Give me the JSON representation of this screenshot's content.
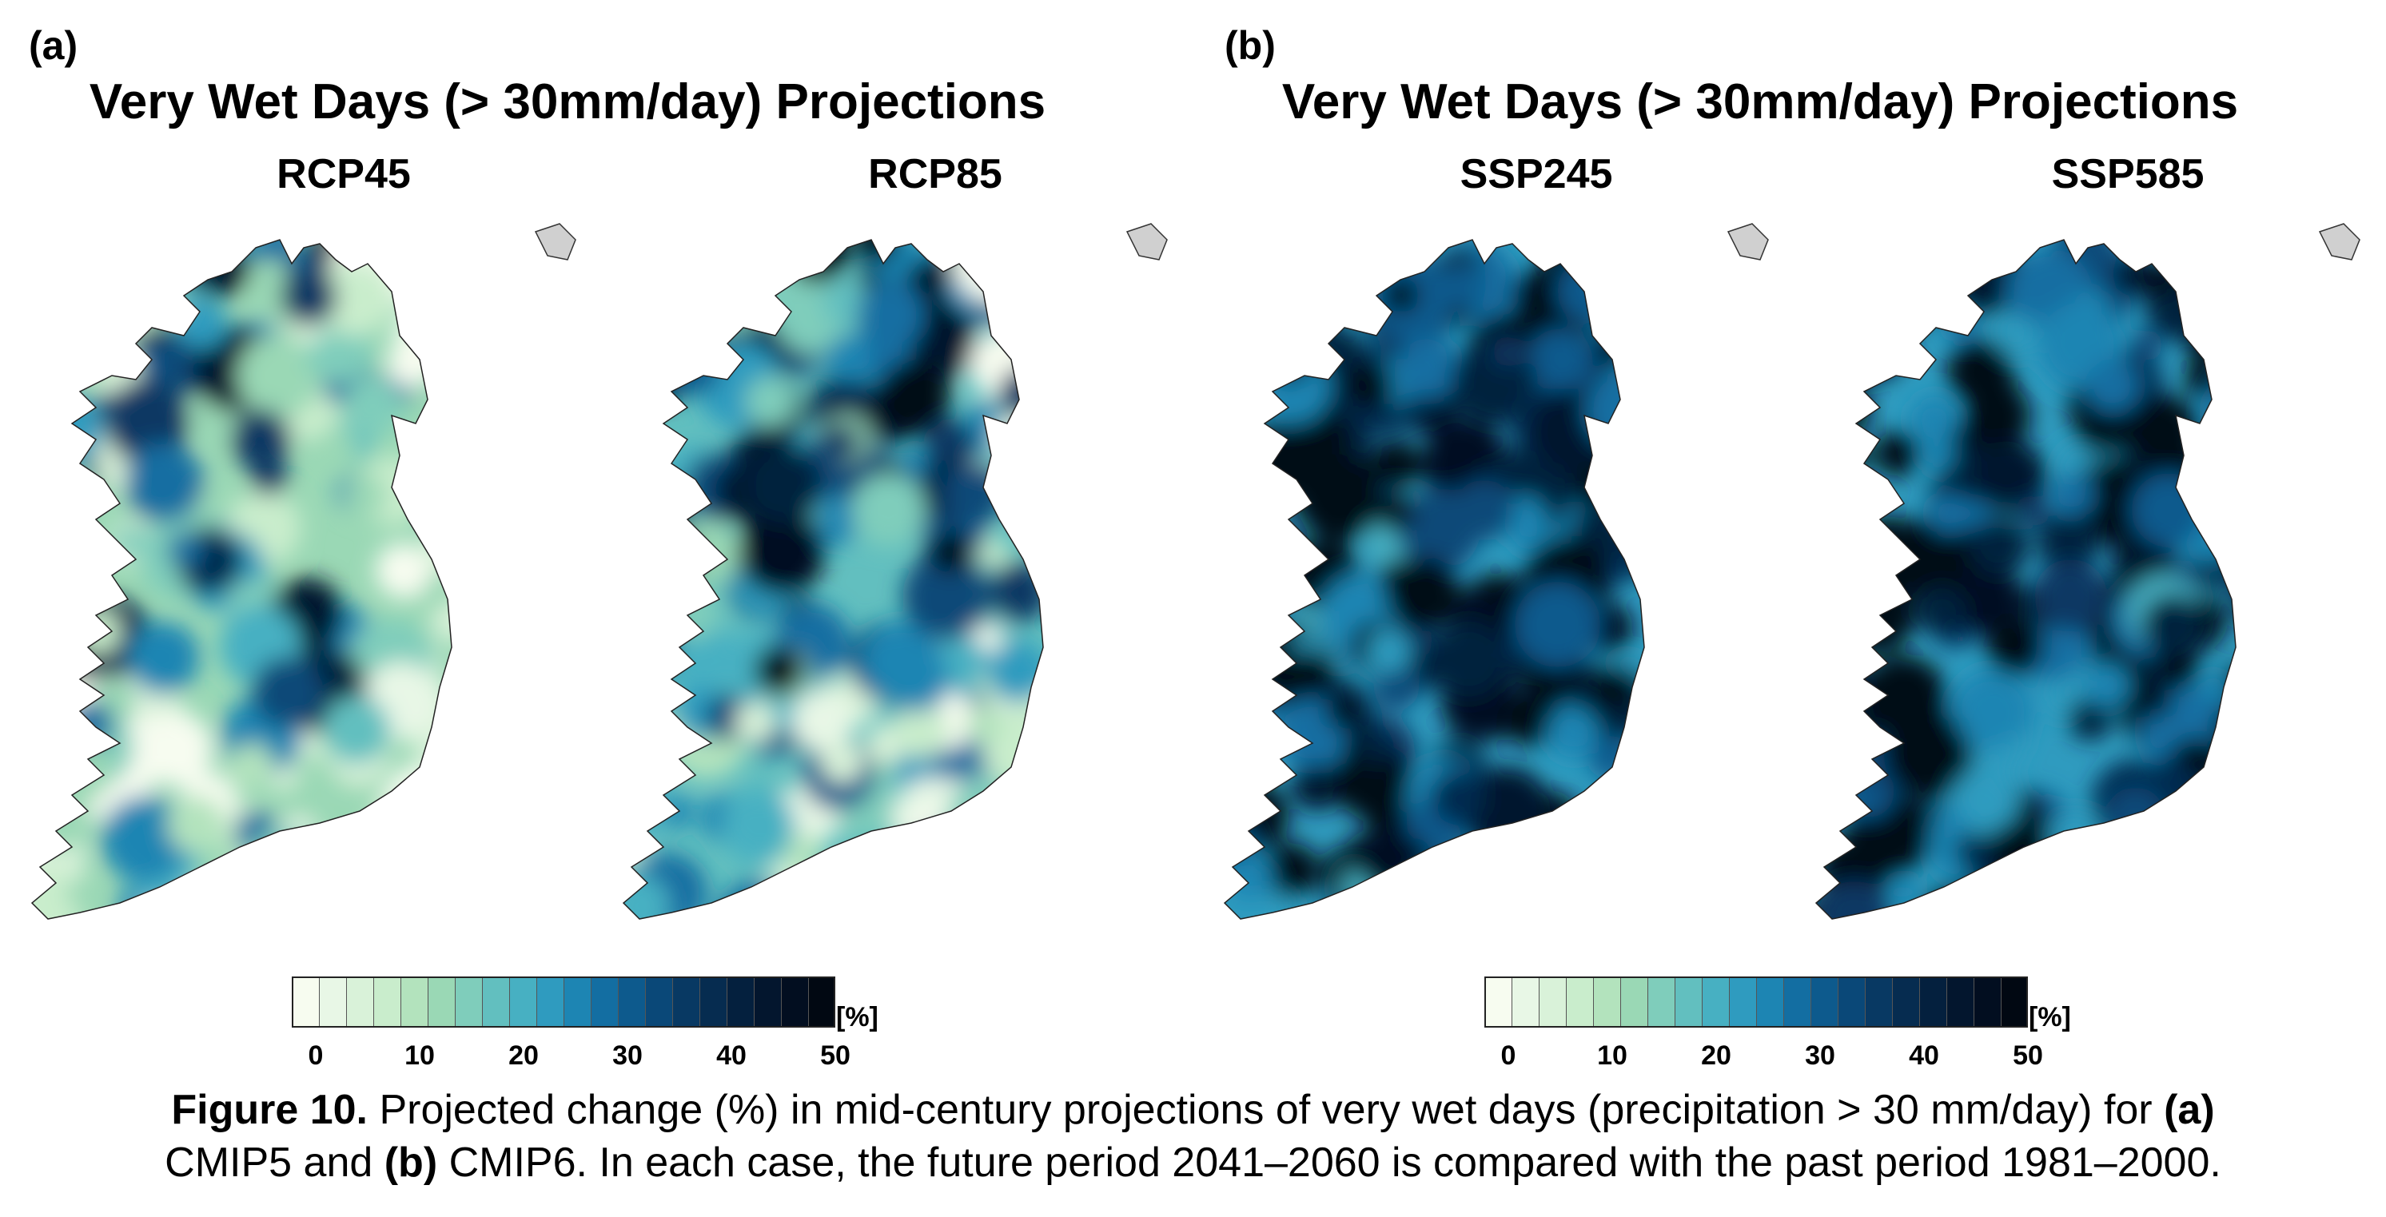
{
  "figure": {
    "panel_a": {
      "letter": "(a)",
      "title": "Very Wet Days (> 30mm/day) Projections",
      "maps": [
        {
          "label": "RCP45",
          "intensity": "medium"
        },
        {
          "label": "RCP85",
          "intensity": "high"
        }
      ]
    },
    "panel_b": {
      "letter": "(b)",
      "title": "Very Wet Days (> 30mm/day) Projections",
      "maps": [
        {
          "label": "SSP245",
          "intensity": "very-high"
        },
        {
          "label": "SSP585",
          "intensity": "very-high"
        }
      ]
    },
    "colorbar": {
      "unit": "[%]",
      "ticks": [
        "0",
        "10",
        "20",
        "30",
        "40",
        "50"
      ],
      "min": 0,
      "max": 50,
      "step": 2.5,
      "colors": [
        "#f7fcf0",
        "#e8f7e6",
        "#d9f2d9",
        "#c9edcc",
        "#b3e3bd",
        "#9ad8b5",
        "#7fcdbb",
        "#62bfbf",
        "#47b0c2",
        "#2f9bbf",
        "#1d85b3",
        "#136ea2",
        "#0d5a8d",
        "#0a4878",
        "#083963",
        "#062c50",
        "#04203e",
        "#03162e",
        "#020e20",
        "#010812"
      ]
    },
    "caption": {
      "label": "Figure 10.",
      "part1": " Projected change (%) in mid-century projections of very wet days (precipitation > 30 mm/day) for ",
      "a": "(a)",
      "part2": " CMIP5 and ",
      "b": "(b)",
      "part3": " CMIP6. In each case, the future period 2041–2060 is compared with the past period 1981–2000."
    }
  }
}
